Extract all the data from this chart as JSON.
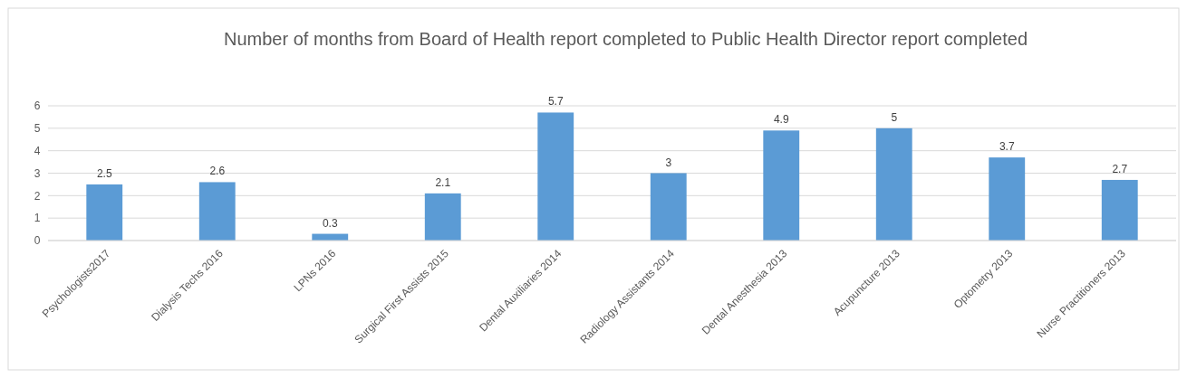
{
  "chart_data": {
    "type": "bar",
    "title": "Number of months from Board of Health  report completed to Public Health Director report completed",
    "categories": [
      "Psychologists2017",
      "Dialysis Techs 2016",
      "LPNs 2016",
      "Surgical First Assists 2015",
      "Dental Auxiliaries 2014",
      "Radiology Assistants 2014",
      "Dental Anesthesia 2013",
      "Acupuncture 2013",
      "Optometry 2013",
      "Nurse Practitioners 2013"
    ],
    "values": [
      2.5,
      2.6,
      0.3,
      2.1,
      5.7,
      3,
      4.9,
      5,
      3.7,
      2.7
    ],
    "color": "#5b9bd5",
    "ylim": [
      0,
      6
    ],
    "yticks": [
      0,
      1,
      2,
      3,
      4,
      5,
      6
    ],
    "grid": "y",
    "data_labels": true
  }
}
